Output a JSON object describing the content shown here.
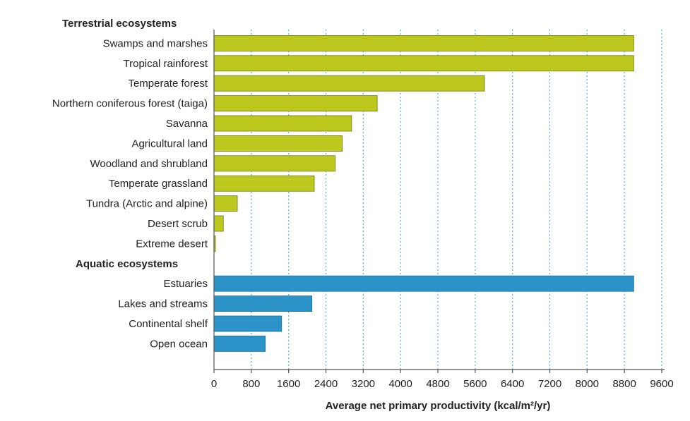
{
  "chart_data": {
    "type": "bar",
    "orientation": "horizontal",
    "xlabel": "Average net primary productivity (kcal/m²/yr)",
    "ylabel": "",
    "xlim": [
      0,
      9600
    ],
    "xticks": [
      "0",
      "800",
      "1600",
      "2400",
      "3200",
      "4000",
      "4800",
      "5600",
      "6400",
      "7200",
      "8000",
      "8800",
      "9600"
    ],
    "xtick_values": [
      0,
      800,
      1600,
      2400,
      3200,
      4000,
      4800,
      5600,
      6400,
      7200,
      8000,
      8800,
      9600
    ],
    "grid": "vertical-dotted",
    "colors": {
      "terrestrial": "#bdc81f",
      "aquatic": "#2c93c9",
      "grid": "#5ab0dc",
      "axis": "#555555",
      "text": "#222222"
    },
    "groups": [
      {
        "label": "Terrestrial ecosystems",
        "color_key": "terrestrial",
        "categories": [
          "Swamps and marshes",
          "Tropical rainforest",
          "Temperate forest",
          "Northern coniferous forest (taiga)",
          "Savanna",
          "Agricultural land",
          "Woodland and shrubland",
          "Temperate grassland",
          "Tundra (Arctic and alpine)",
          "Desert scrub",
          "Extreme desert"
        ],
        "values": [
          9000,
          9000,
          5800,
          3500,
          2950,
          2750,
          2600,
          2150,
          500,
          200,
          30
        ]
      },
      {
        "label": "Aquatic ecosystems",
        "color_key": "aquatic",
        "categories": [
          "Estuaries",
          "Lakes and streams",
          "Continental shelf",
          "Open ocean"
        ],
        "values": [
          9000,
          2100,
          1450,
          1100
        ]
      }
    ]
  }
}
